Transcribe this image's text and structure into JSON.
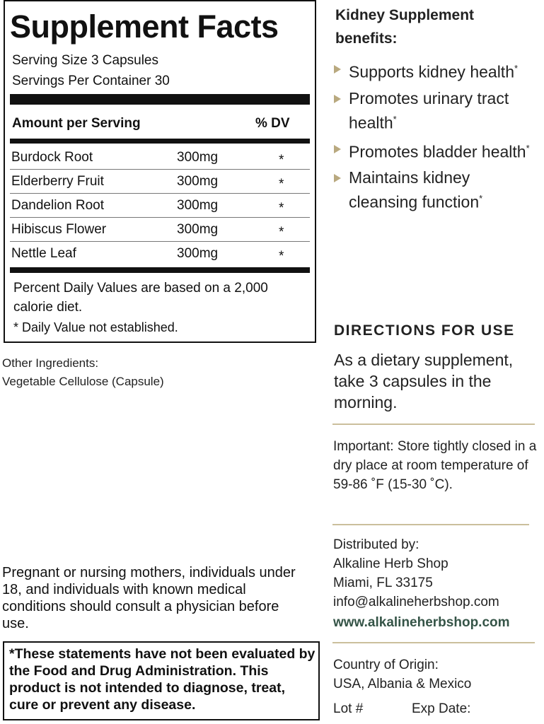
{
  "facts": {
    "title": "Supplement Facts",
    "serving_size": "Serving Size 3 Capsules",
    "servings_per_container": "Servings Per Container 30",
    "amount_header": "Amount per Serving",
    "dv_header": "% DV",
    "rows": [
      [
        "Burdock Root",
        "300mg",
        "*"
      ],
      [
        "Elderberry Fruit",
        "300mg",
        "*"
      ],
      [
        "Dandelion Root",
        "300mg",
        "*"
      ],
      [
        "Hibiscus Flower",
        "300mg",
        "*"
      ],
      [
        "Nettle Leaf",
        "300mg",
        "*"
      ]
    ],
    "note": "Percent Daily Values are based on a 2,000 calorie diet.",
    "footnote": "* Daily Value not established."
  },
  "other_ingredients": {
    "label": "Other Ingredients:",
    "text": "Vegetable Cellulose (Capsule)"
  },
  "warning": "Pregnant or nursing mothers, individuals under 18, and individuals with known medical conditions should consult a physician before use.",
  "disclaimer": "*These statements have not been evaluated by the Food and Drug Administration. This product is not intended to diagnose, treat, cure or prevent any disease.",
  "benefits": {
    "title": "Kidney Supplement benefits:",
    "items": [
      {
        "text": "Supports kidney health",
        "mark": "*"
      },
      {
        "text": "Promotes urinary tract health",
        "mark": "*"
      },
      {
        "text": "Promotes bladder health",
        "mark": "*"
      },
      {
        "text": "Maintains kidney cleansing function",
        "mark": "*"
      }
    ]
  },
  "directions": {
    "title": "DIRECTIONS FOR USE",
    "text": "As a dietary supplement, take 3 capsules in the morning."
  },
  "storage": "Important: Store tightly closed in a dry place at room temperature of 59-86 ˚F (15-30 ˚C).",
  "distributor": {
    "label": "Distributed by:",
    "name": "Alkaline Herb Shop",
    "address": "Miami, FL 33175",
    "email": "info@alkalineherbshop.com",
    "website": "www.alkalineherbshop.com"
  },
  "origin": {
    "label": "Country of Origin:",
    "value": "USA, Albania & Mexico",
    "lot": "Lot #",
    "exp": "Exp Date:"
  }
}
